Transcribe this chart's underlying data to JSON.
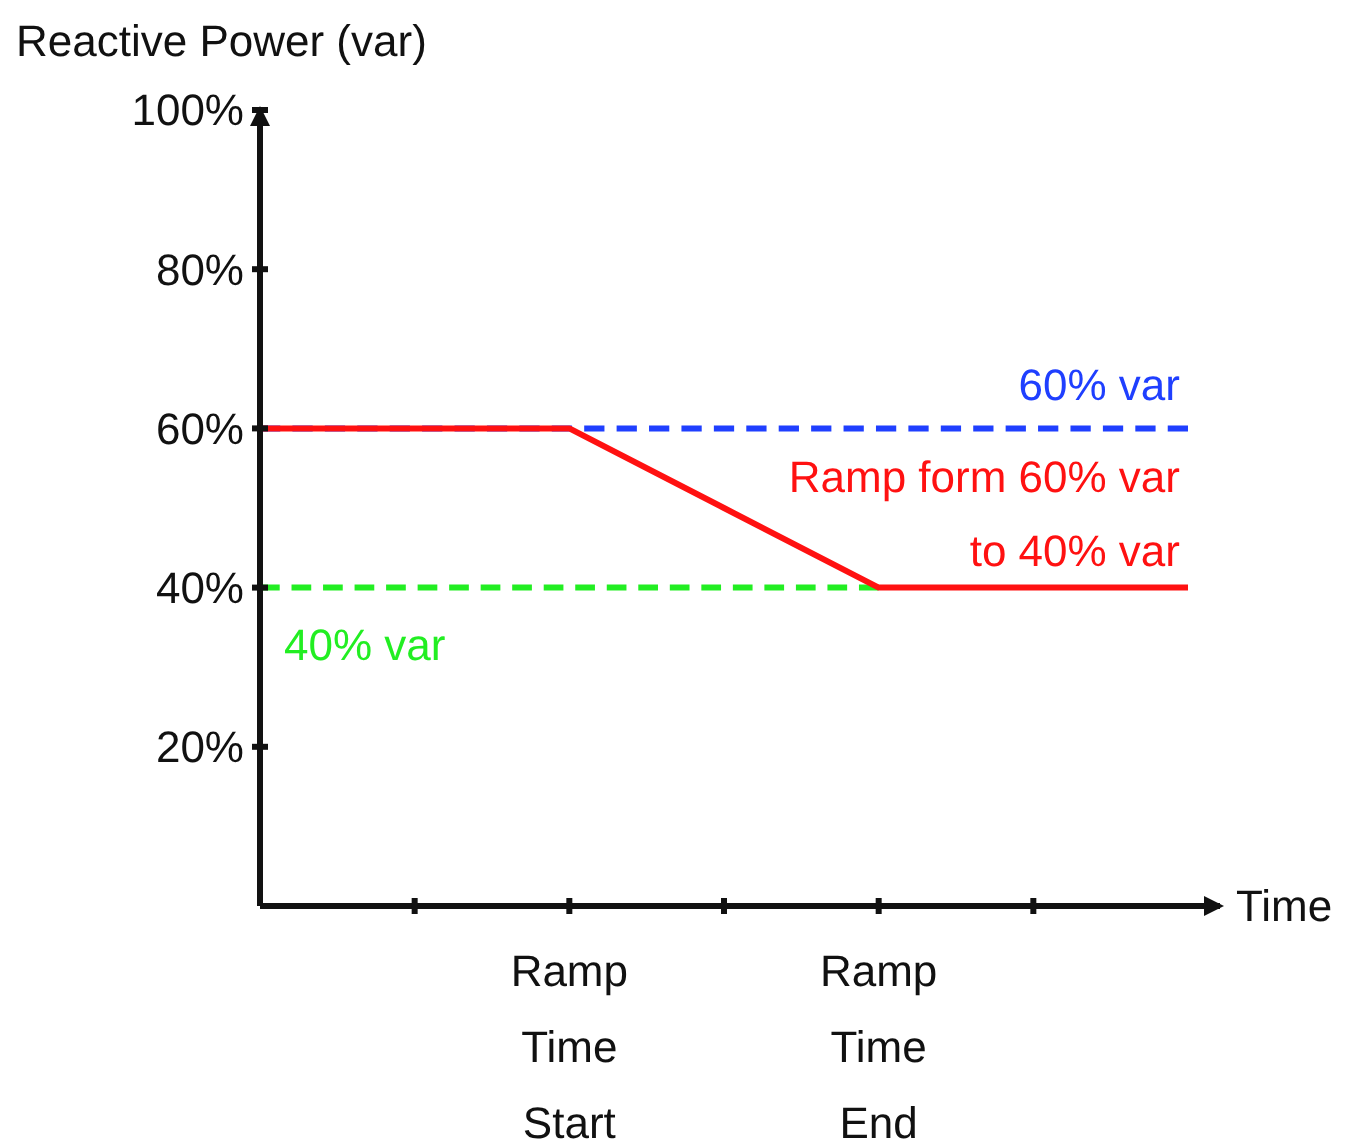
{
  "chart_data": {
    "type": "line",
    "ylabel": "Reactive Power (var)",
    "xlabel": "Time",
    "ylim": [
      0,
      100
    ],
    "categories": [
      null,
      null,
      "Ramp Time Start",
      null,
      "Ramp Time End",
      null,
      null
    ],
    "yticks": [
      {
        "value": 20,
        "label": "20%"
      },
      {
        "value": 40,
        "label": "40%"
      },
      {
        "value": 60,
        "label": "60%"
      },
      {
        "value": 80,
        "label": "80%"
      },
      {
        "value": 100,
        "label": "100%"
      }
    ],
    "grid": false,
    "marker": "none",
    "series": [
      {
        "name": "60% var",
        "color": "#1f3fff",
        "line_style": "dashed",
        "values": [
          60,
          60,
          60,
          60,
          60,
          60,
          60
        ]
      },
      {
        "name": "40% var",
        "color": "#22ee22",
        "line_style": "dashed",
        "values": [
          40,
          40,
          40,
          40,
          40,
          null,
          null
        ]
      },
      {
        "name": "Ramp form 60% var to 40% var",
        "color": "#ff1111",
        "line_style": "solid",
        "values": [
          60,
          60,
          60,
          50,
          40,
          40,
          40
        ]
      }
    ]
  }
}
